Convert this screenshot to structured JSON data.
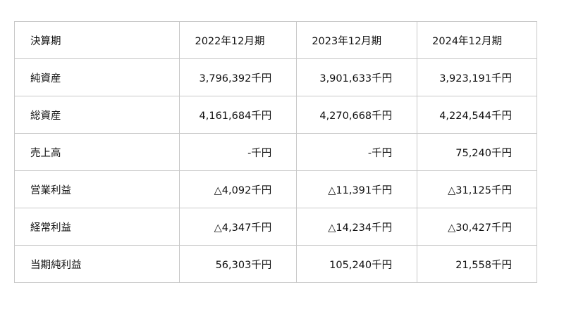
{
  "table": {
    "header": {
      "label": "決算期",
      "cols": [
        "2022年12月期",
        "2023年12月期",
        "2024年12月期"
      ]
    },
    "rows": [
      {
        "label": "純資産",
        "values": [
          "3,796,392千円",
          "3,901,633千円",
          "3,923,191千円"
        ]
      },
      {
        "label": "総資産",
        "values": [
          "4,161,684千円",
          "4,270,668千円",
          "4,224,544千円"
        ]
      },
      {
        "label": "売上高",
        "values": [
          "-千円",
          "-千円",
          "75,240千円"
        ]
      },
      {
        "label": "営業利益",
        "values": [
          "△4,092千円",
          "△11,391千円",
          "△31,125千円"
        ]
      },
      {
        "label": "経常利益",
        "values": [
          "△4,347千円",
          "△14,234千円",
          "△30,427千円"
        ]
      },
      {
        "label": "当期純利益",
        "values": [
          "56,303千円",
          "105,240千円",
          "21,558千円"
        ]
      }
    ]
  }
}
